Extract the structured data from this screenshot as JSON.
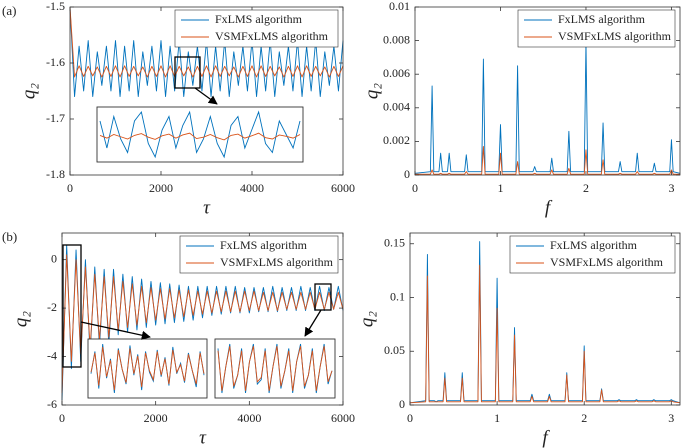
{
  "chart_data": [
    {
      "type": "line",
      "panel_label": "(a)",
      "xlabel": "τ",
      "ylabel": "q₂",
      "legend": "upper-right",
      "xlim": [
        0,
        6000
      ],
      "xticks": [
        0,
        2000,
        4000,
        6000
      ],
      "ylim": [
        -1.8,
        -1.5
      ],
      "yticks": [
        -1.8,
        -1.7,
        -1.6,
        -1.5
      ],
      "x": [
        0,
        100,
        200,
        300,
        400,
        500,
        600,
        700,
        800,
        900,
        1000,
        1100,
        1200,
        1300,
        1400,
        1500,
        1600,
        1700,
        1800,
        1900,
        2000,
        2100,
        2200,
        2300,
        2400,
        2500,
        2600,
        2700,
        2800,
        2900,
        3000,
        3100,
        3200,
        3300,
        3400,
        3500,
        3600,
        3700,
        3800,
        3900,
        4000,
        4100,
        4200,
        4300,
        4400,
        4500,
        4600,
        4700,
        4800,
        4900,
        5000,
        5100,
        5200,
        5300,
        5400,
        5500,
        5600,
        5700,
        5800,
        5900,
        6000
      ],
      "series": [
        {
          "name": "FxLMS algorithm",
          "color": "#0072bd",
          "values": [
            -1.5,
            -1.66,
            -1.57,
            -1.65,
            -1.56,
            -1.66,
            -1.58,
            -1.64,
            -1.57,
            -1.65,
            -1.56,
            -1.66,
            -1.57,
            -1.65,
            -1.56,
            -1.66,
            -1.58,
            -1.64,
            -1.57,
            -1.65,
            -1.56,
            -1.66,
            -1.57,
            -1.65,
            -1.56,
            -1.66,
            -1.58,
            -1.64,
            -1.57,
            -1.65,
            -1.56,
            -1.66,
            -1.57,
            -1.65,
            -1.56,
            -1.66,
            -1.58,
            -1.64,
            -1.57,
            -1.65,
            -1.56,
            -1.66,
            -1.57,
            -1.65,
            -1.56,
            -1.66,
            -1.58,
            -1.64,
            -1.57,
            -1.65,
            -1.56,
            -1.66,
            -1.57,
            -1.65,
            -1.56,
            -1.66,
            -1.58,
            -1.64,
            -1.57,
            -1.65,
            -1.56
          ]
        },
        {
          "name": "VSMFxLMS algorithm",
          "color": "#d95319",
          "values": [
            -1.5,
            -1.625,
            -1.605,
            -1.624,
            -1.606,
            -1.623,
            -1.607,
            -1.625,
            -1.606,
            -1.624,
            -1.605,
            -1.625,
            -1.605,
            -1.624,
            -1.606,
            -1.623,
            -1.607,
            -1.625,
            -1.606,
            -1.624,
            -1.605,
            -1.625,
            -1.605,
            -1.624,
            -1.606,
            -1.623,
            -1.607,
            -1.625,
            -1.606,
            -1.624,
            -1.605,
            -1.625,
            -1.605,
            -1.624,
            -1.606,
            -1.623,
            -1.607,
            -1.625,
            -1.606,
            -1.624,
            -1.605,
            -1.625,
            -1.605,
            -1.624,
            -1.606,
            -1.623,
            -1.607,
            -1.625,
            -1.606,
            -1.624,
            -1.605,
            -1.625,
            -1.605,
            -1.624,
            -1.606,
            -1.623,
            -1.607,
            -1.625,
            -1.606,
            -1.624,
            -1.605
          ]
        }
      ],
      "insets": [
        {
          "series": [
            {
              "color": "#0072bd",
              "values": [
                -1.58,
                -1.64,
                -1.57,
                -1.62,
                -1.65,
                -1.58,
                -1.56,
                -1.63,
                -1.66,
                -1.6,
                -1.57,
                -1.64,
                -1.59,
                -1.56,
                -1.65,
                -1.62,
                -1.57,
                -1.63,
                -1.66,
                -1.59,
                -1.57,
                -1.64,
                -1.6,
                -1.56,
                -1.63,
                -1.65,
                -1.58,
                -1.61,
                -1.64,
                -1.58
              ]
            },
            {
              "color": "#d95319",
              "values": [
                -1.612,
                -1.618,
                -1.61,
                -1.615,
                -1.62,
                -1.612,
                -1.608,
                -1.616,
                -1.621,
                -1.613,
                -1.609,
                -1.618,
                -1.611,
                -1.607,
                -1.619,
                -1.616,
                -1.61,
                -1.617,
                -1.622,
                -1.612,
                -1.609,
                -1.618,
                -1.613,
                -1.607,
                -1.617,
                -1.62,
                -1.611,
                -1.614,
                -1.618,
                -1.61
              ]
            }
          ]
        }
      ]
    },
    {
      "type": "line",
      "xlabel": "f",
      "ylabel": "q₂",
      "legend": "upper-right",
      "xlim": [
        0,
        3.1
      ],
      "xticks": [
        0,
        1,
        2,
        3
      ],
      "ylim": [
        0,
        0.01
      ],
      "yticks": [
        0,
        0.002,
        0.004,
        0.006,
        0.008,
        0.01
      ],
      "x": [
        0,
        0.18,
        0.2,
        0.22,
        0.28,
        0.3,
        0.32,
        0.38,
        0.4,
        0.42,
        0.58,
        0.6,
        0.62,
        0.78,
        0.8,
        0.82,
        0.98,
        1.0,
        1.02,
        1.18,
        1.2,
        1.22,
        1.38,
        1.4,
        1.42,
        1.58,
        1.6,
        1.62,
        1.78,
        1.8,
        1.82,
        1.98,
        2.0,
        2.02,
        2.18,
        2.2,
        2.22,
        2.38,
        2.4,
        2.42,
        2.58,
        2.6,
        2.62,
        2.78,
        2.8,
        2.82,
        2.98,
        3.0,
        3.02,
        3.1
      ],
      "series": [
        {
          "name": "FxLMS algorithm",
          "color": "#0072bd",
          "values": [
            0.0001,
            0.0002,
            0.0053,
            0.0002,
            0.0002,
            0.0013,
            0.0002,
            0.0002,
            0.0013,
            0.0002,
            0.0002,
            0.0012,
            0.0002,
            0.0002,
            0.0069,
            0.0002,
            0.0002,
            0.003,
            0.0002,
            0.0002,
            0.0065,
            0.0002,
            0.0002,
            0.0005,
            0.0002,
            0.0002,
            0.001,
            0.0002,
            0.0002,
            0.0026,
            0.0002,
            0.0002,
            0.0079,
            0.0002,
            0.0002,
            0.0031,
            0.0002,
            0.0002,
            0.0008,
            0.0002,
            0.0002,
            0.0013,
            0.0002,
            0.0002,
            0.0007,
            0.0002,
            0.0002,
            0.0021,
            0.0002,
            0.0001
          ]
        },
        {
          "name": "VSMFxLMS algorithm",
          "color": "#d95319",
          "values": [
            5e-05,
            5e-05,
            0.0003,
            5e-05,
            5e-05,
            0.0001,
            5e-05,
            5e-05,
            0.0001,
            5e-05,
            5e-05,
            0.0002,
            5e-05,
            5e-05,
            0.0017,
            5e-05,
            5e-05,
            0.0013,
            5e-05,
            5e-05,
            0.0008,
            5e-05,
            5e-05,
            0.0001,
            5e-05,
            5e-05,
            0.0003,
            5e-05,
            5e-05,
            0.0004,
            5e-05,
            5e-05,
            0.0015,
            5e-05,
            5e-05,
            0.0009,
            5e-05,
            5e-05,
            0.0001,
            5e-05,
            5e-05,
            0.0002,
            5e-05,
            5e-05,
            0.0001,
            5e-05,
            5e-05,
            0.0003,
            5e-05,
            5e-05
          ]
        }
      ]
    },
    {
      "type": "line",
      "panel_label": "(b)",
      "xlabel": "τ",
      "ylabel": "q₂",
      "legend": "upper-right",
      "xlim": [
        0,
        6000
      ],
      "xticks": [
        0,
        2000,
        4000,
        6000
      ],
      "ylim": [
        -6,
        1.1
      ],
      "yticks": [
        -6,
        -4,
        -2,
        0
      ],
      "x": [
        0,
        100,
        200,
        300,
        400,
        500,
        600,
        700,
        800,
        900,
        1000,
        1100,
        1200,
        1300,
        1400,
        1500,
        1600,
        1700,
        1800,
        1900,
        2000,
        2100,
        2200,
        2300,
        2400,
        2500,
        2600,
        2700,
        2800,
        2900,
        3000,
        3100,
        3200,
        3300,
        3400,
        3500,
        3600,
        3700,
        3800,
        3900,
        4000,
        4100,
        4200,
        4300,
        4400,
        4500,
        4600,
        4700,
        4800,
        4900,
        5000,
        5100,
        5200,
        5300,
        5400,
        5500,
        5600,
        5700,
        5800,
        5900,
        6000
      ],
      "series": [
        {
          "name": "FxLMS algorithm",
          "color": "#0072bd",
          "values": [
            -5.8,
            0.6,
            -4.5,
            0.4,
            -4.2,
            0.0,
            -3.9,
            -0.3,
            -3.6,
            -0.4,
            -3.5,
            -0.4,
            -3.1,
            -0.6,
            -3.0,
            -0.7,
            -2.9,
            -0.8,
            -2.8,
            -0.9,
            -2.7,
            -0.95,
            -2.65,
            -1.0,
            -2.6,
            -1.05,
            -2.55,
            -1.1,
            -2.5,
            -1.1,
            -2.4,
            -1.1,
            -2.3,
            -1.1,
            -2.25,
            -1.1,
            -2.2,
            -1.1,
            -2.2,
            -1.15,
            -2.2,
            -1.15,
            -2.15,
            -1.15,
            -2.15,
            -1.1,
            -2.15,
            -1.15,
            -2.1,
            -1.15,
            -2.1,
            -1.1,
            -2.1,
            -1.15,
            -2.1,
            -1.1,
            -2.1,
            -1.15,
            -2.05,
            -1.1,
            -2.1
          ]
        },
        {
          "name": "VSMFxLMS algorithm",
          "color": "#d95319",
          "values": [
            -5.5,
            0.2,
            -4.2,
            0.0,
            -3.9,
            -0.3,
            -3.6,
            -0.6,
            -3.3,
            -0.7,
            -3.2,
            -0.7,
            -2.9,
            -0.9,
            -2.8,
            -1.0,
            -2.7,
            -1.1,
            -2.6,
            -1.15,
            -2.5,
            -1.2,
            -2.45,
            -1.2,
            -2.4,
            -1.25,
            -2.35,
            -1.25,
            -2.3,
            -1.3,
            -2.25,
            -1.3,
            -2.2,
            -1.3,
            -2.15,
            -1.3,
            -2.15,
            -1.3,
            -2.15,
            -1.3,
            -2.1,
            -1.3,
            -2.1,
            -1.35,
            -2.1,
            -1.35,
            -2.1,
            -1.35,
            -2.05,
            -1.35,
            -2.05,
            -1.35,
            -2.05,
            -1.35,
            -2.05,
            -1.35,
            -2.05,
            -1.35,
            -2.05,
            -1.35,
            -2.05
          ]
        }
      ],
      "insets": [
        {
          "series": [
            {
              "color": "#0072bd",
              "values": [
                -2.5,
                -1.0,
                -3.5,
                -0.5,
                -2.8,
                -1.5,
                -3.8,
                -0.8,
                -2.2,
                -3.2,
                -0.6,
                -2.6,
                -1.2,
                -3.6,
                -1.0,
                -2.4,
                -3.0,
                -0.9,
                -2.7,
                -1.4,
                -3.3,
                -0.7,
                -2.5,
                -1.8,
                -3.1,
                -1.1,
                -2.3,
                -3.4,
                -1.0,
                -2.6
              ]
            },
            {
              "color": "#d95319",
              "values": [
                -2.4,
                -1.1,
                -3.3,
                -0.7,
                -2.7,
                -1.6,
                -3.6,
                -0.9,
                -2.2,
                -3.1,
                -0.8,
                -2.5,
                -1.3,
                -3.4,
                -1.1,
                -2.3,
                -2.9,
                -1.0,
                -2.6,
                -1.5,
                -3.2,
                -0.9,
                -2.4,
                -1.9,
                -3.0,
                -1.2,
                -2.3,
                -3.2,
                -1.1,
                -2.5
              ]
            }
          ]
        },
        {
          "series": [
            {
              "color": "#0072bd",
              "values": [
                -1.2,
                -2.2,
                -1.6,
                -1.1,
                -2.1,
                -1.8,
                -1.2,
                -2.2,
                -1.5,
                -1.1,
                -2.0,
                -1.9,
                -1.2,
                -2.2,
                -1.6,
                -1.1,
                -2.1,
                -1.7,
                -1.2,
                -2.2,
                -1.5,
                -1.1,
                -2.1,
                -1.8,
                -1.2,
                -2.2,
                -1.6,
                -1.1,
                -2.0,
                -1.7
              ]
            },
            {
              "color": "#d95319",
              "values": [
                -1.25,
                -2.15,
                -1.6,
                -1.15,
                -2.05,
                -1.8,
                -1.25,
                -2.15,
                -1.5,
                -1.15,
                -1.95,
                -1.85,
                -1.25,
                -2.15,
                -1.6,
                -1.15,
                -2.05,
                -1.7,
                -1.25,
                -2.15,
                -1.5,
                -1.15,
                -2.05,
                -1.8,
                -1.25,
                -2.15,
                -1.6,
                -1.15,
                -1.95,
                -1.7
              ]
            }
          ]
        }
      ]
    },
    {
      "type": "line",
      "xlabel": "f",
      "ylabel": "q₂",
      "legend": "upper-right",
      "xlim": [
        0,
        3.1
      ],
      "xticks": [
        0,
        1,
        2,
        3
      ],
      "ylim": [
        0,
        0.16
      ],
      "yticks": [
        0,
        0.05,
        0.1,
        0.15
      ],
      "x": [
        0,
        0.18,
        0.2,
        0.22,
        0.28,
        0.3,
        0.32,
        0.38,
        0.4,
        0.42,
        0.58,
        0.6,
        0.62,
        0.78,
        0.8,
        0.82,
        0.98,
        1.0,
        1.02,
        1.18,
        1.2,
        1.22,
        1.38,
        1.4,
        1.42,
        1.58,
        1.6,
        1.62,
        1.78,
        1.8,
        1.82,
        1.98,
        2.0,
        2.02,
        2.18,
        2.2,
        2.22,
        2.38,
        2.4,
        2.42,
        2.58,
        2.6,
        2.62,
        2.78,
        2.8,
        2.82,
        2.98,
        3.0,
        3.02,
        3.1
      ],
      "series": [
        {
          "name": "FxLMS algorithm",
          "color": "#0072bd",
          "values": [
            0.002,
            0.004,
            0.14,
            0.004,
            0.004,
            0.003,
            0.004,
            0.004,
            0.03,
            0.004,
            0.004,
            0.03,
            0.004,
            0.004,
            0.152,
            0.004,
            0.004,
            0.118,
            0.004,
            0.004,
            0.072,
            0.004,
            0.004,
            0.01,
            0.004,
            0.004,
            0.01,
            0.004,
            0.004,
            0.03,
            0.004,
            0.004,
            0.055,
            0.004,
            0.004,
            0.015,
            0.004,
            0.004,
            0.005,
            0.004,
            0.004,
            0.005,
            0.004,
            0.004,
            0.005,
            0.004,
            0.004,
            0.005,
            0.004,
            0.002
          ]
        },
        {
          "name": "VSMFxLMS algorithm",
          "color": "#d95319",
          "values": [
            0.002,
            0.003,
            0.12,
            0.003,
            0.003,
            0.003,
            0.003,
            0.003,
            0.025,
            0.003,
            0.003,
            0.025,
            0.003,
            0.003,
            0.13,
            0.003,
            0.003,
            0.09,
            0.003,
            0.003,
            0.065,
            0.003,
            0.003,
            0.008,
            0.003,
            0.003,
            0.008,
            0.003,
            0.003,
            0.028,
            0.003,
            0.003,
            0.05,
            0.003,
            0.003,
            0.014,
            0.003,
            0.003,
            0.004,
            0.003,
            0.003,
            0.004,
            0.003,
            0.003,
            0.004,
            0.003,
            0.003,
            0.004,
            0.003,
            0.002
          ]
        }
      ]
    }
  ]
}
